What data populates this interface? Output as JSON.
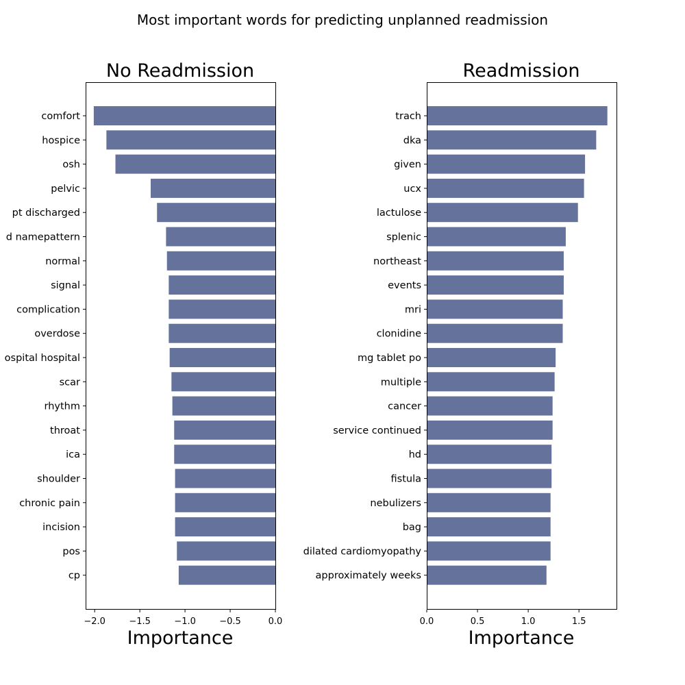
{
  "figure_title": "Most important words for predicting unplanned readmission",
  "chart_data": [
    {
      "type": "bar",
      "orientation": "horizontal",
      "title": "No Readmission",
      "xlabel": "Importance",
      "ylabel": "",
      "xlim": [
        -2.1,
        0.0
      ],
      "xticks": [
        -2.0,
        -1.5,
        -1.0,
        -0.5,
        0.0
      ],
      "xtick_labels": [
        "−2.0",
        "−1.5",
        "−1.0",
        "−0.5",
        "0.0"
      ],
      "grid": false,
      "bar_color": "#65739c",
      "categories": [
        "comfort",
        "hospice",
        "osh",
        "pelvic",
        "pt discharged",
        "d namepattern",
        "normal",
        "signal",
        "complication",
        "overdose",
        "ospital hospital",
        "scar",
        "rhythm",
        "throat",
        "ica",
        "shoulder",
        "chronic pain",
        "incision",
        "pos",
        "cp"
      ],
      "values": [
        -2.01,
        -1.87,
        -1.77,
        -1.38,
        -1.31,
        -1.21,
        -1.2,
        -1.18,
        -1.18,
        -1.18,
        -1.17,
        -1.15,
        -1.14,
        -1.12,
        -1.12,
        -1.11,
        -1.11,
        -1.11,
        -1.09,
        -1.07
      ]
    },
    {
      "type": "bar",
      "orientation": "horizontal",
      "title": "Readmission",
      "xlabel": "Importance",
      "ylabel": "",
      "xlim": [
        0.0,
        1.87
      ],
      "xticks": [
        0.0,
        0.5,
        1.0,
        1.5
      ],
      "xtick_labels": [
        "0.0",
        "0.5",
        "1.0",
        "1.5"
      ],
      "grid": false,
      "bar_color": "#65739c",
      "categories": [
        "trach",
        "dka",
        "given",
        "ucx",
        "lactulose",
        "splenic",
        "northeast",
        "events",
        "mri",
        "clonidine",
        "mg tablet po",
        "multiple",
        "cancer",
        "service continued",
        "hd",
        "fistula",
        "nebulizers",
        "bag",
        "dilated cardiomyopathy",
        "approximately weeks"
      ],
      "values": [
        1.78,
        1.67,
        1.56,
        1.55,
        1.49,
        1.37,
        1.35,
        1.35,
        1.34,
        1.34,
        1.27,
        1.26,
        1.24,
        1.24,
        1.23,
        1.23,
        1.22,
        1.22,
        1.22,
        1.18
      ]
    }
  ]
}
